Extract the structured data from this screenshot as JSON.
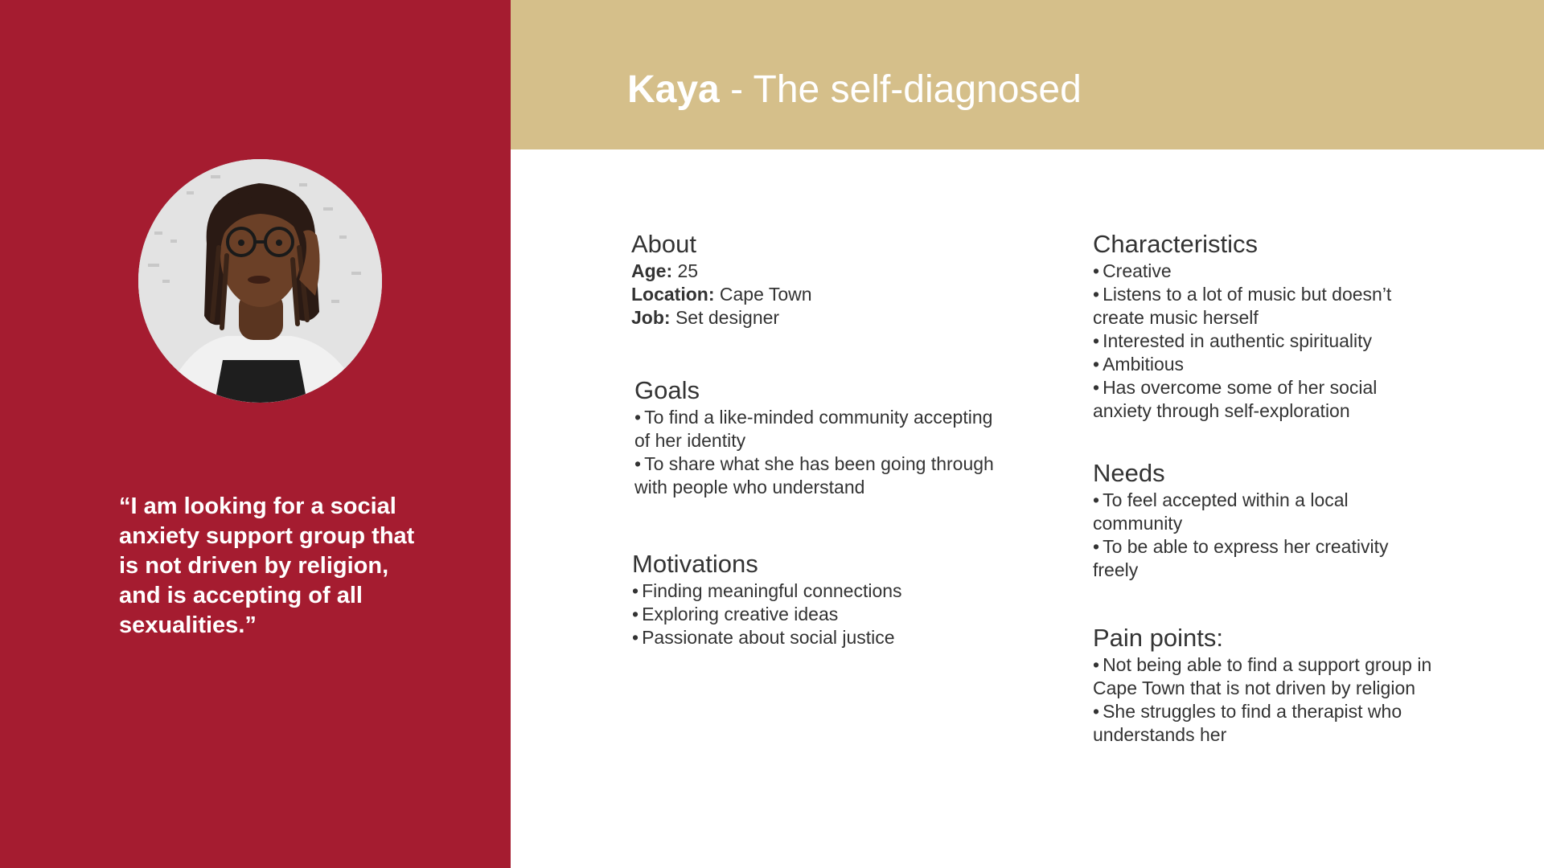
{
  "colors": {
    "left_panel": "#a51c30",
    "header_band": "#d5bf8a",
    "title_text": "#ffffff",
    "body_text": "#333333"
  },
  "persona": {
    "name": "Kaya",
    "tagline": " - The self-diagnosed",
    "photo": "portrait-photo",
    "quote": "“I am looking for a social anxiety support group that is not driven by religion, and is accepting of all sexualities.”"
  },
  "about": {
    "heading": "About",
    "age_label": "Age:",
    "age_value": " 25",
    "location_label": "Location:",
    "location_value": " Cape Town",
    "job_label": "Job:",
    "job_value": " Set designer"
  },
  "goals": {
    "heading": "Goals",
    "items": [
      "To find a like-minded community accepting of her identity",
      "To share what she has been going through with people who understand"
    ]
  },
  "motivations": {
    "heading": "Motivations",
    "items": [
      "Finding meaningful connections",
      "Exploring creative ideas",
      "Passionate about social justice"
    ]
  },
  "characteristics": {
    "heading": "Characteristics",
    "items": [
      "Creative",
      "Listens to a lot of music but doesn’t create music herself",
      "Interested in authentic spirituality",
      "Ambitious",
      "Has overcome some of her social anxiety through self-exploration"
    ]
  },
  "needs": {
    "heading": "Needs",
    "items": [
      "To feel accepted within a local community",
      "To be able to express her creativity freely"
    ]
  },
  "pain_points": {
    "heading": "Pain points:",
    "items": [
      "Not being able to find a support group in Cape Town that is not driven by religion",
      "She struggles to find a therapist who understands her"
    ]
  },
  "bullet_char": "•"
}
